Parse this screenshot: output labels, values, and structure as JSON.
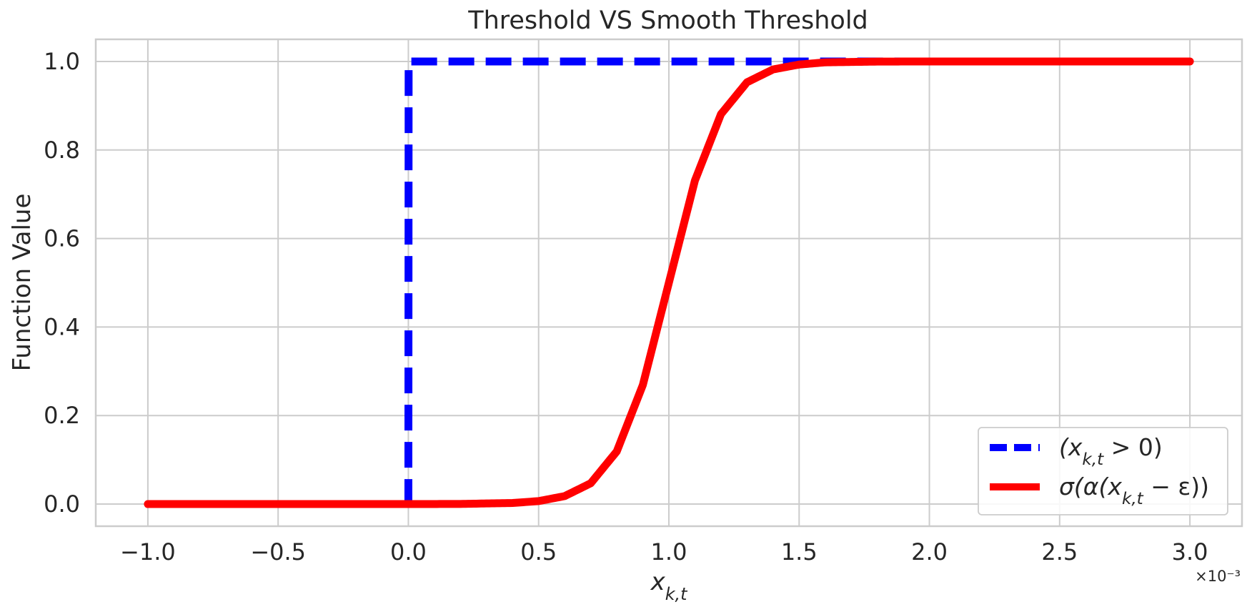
{
  "chart_data": {
    "type": "line",
    "title": "Threshold VS Smooth Threshold",
    "xlabel": "x_{k,t}",
    "ylabel": "Function Value",
    "x_offset_label": "×10⁻³",
    "xlim": [
      -1.2,
      3.2
    ],
    "ylim": [
      -0.05,
      1.05
    ],
    "x_ticks": [
      -1.0,
      -0.5,
      0.0,
      0.5,
      1.0,
      1.5,
      2.0,
      2.5,
      3.0
    ],
    "x_tick_labels": [
      "−1.0",
      "−0.5",
      "0.0",
      "0.5",
      "1.0",
      "1.5",
      "2.0",
      "2.5",
      "3.0"
    ],
    "y_ticks": [
      0.0,
      0.2,
      0.4,
      0.6,
      0.8,
      1.0
    ],
    "y_tick_labels": [
      "0.0",
      "0.2",
      "0.4",
      "0.6",
      "0.8",
      "1.0"
    ],
    "grid": true,
    "legend_position": "lower-right",
    "series": [
      {
        "name": "(x_{k,t} > 0)",
        "color": "#0000ff",
        "style": "dashed",
        "x": [
          -0.003,
          -0.002,
          -0.001,
          0.0,
          0.001,
          0.002,
          3.0
        ],
        "y": [
          0.0,
          0.0,
          0.0,
          0.0,
          1.0,
          1.0,
          1.0
        ]
      },
      {
        "name": "σ(α(x_{k,t} − ε))",
        "color": "#ff0000",
        "style": "solid",
        "x": [
          -1.0,
          -0.5,
          0.0,
          0.2,
          0.4,
          0.5,
          0.6,
          0.7,
          0.8,
          0.9,
          1.0,
          1.1,
          1.2,
          1.3,
          1.4,
          1.5,
          1.6,
          1.8,
          2.0,
          2.5,
          3.0
        ],
        "y": [
          0.0,
          0.0,
          0.0,
          0.0003,
          0.0025,
          0.0067,
          0.018,
          0.047,
          0.119,
          0.269,
          0.5,
          0.731,
          0.881,
          0.953,
          0.982,
          0.993,
          0.998,
          0.9997,
          1.0,
          1.0,
          1.0
        ]
      }
    ]
  }
}
